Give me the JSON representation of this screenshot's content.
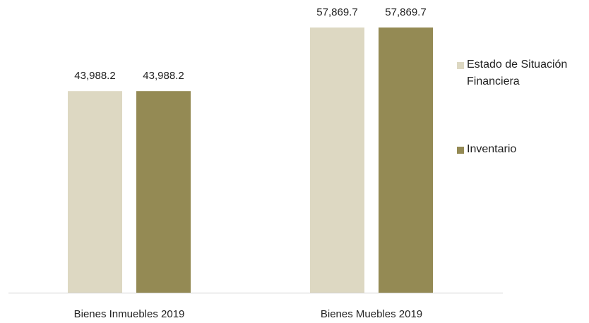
{
  "chart_data": {
    "type": "bar",
    "categories": [
      "Bienes Inmuebles 2019",
      "Bienes Muebles 2019"
    ],
    "series": [
      {
        "name": "Estado de Situación Financiera",
        "color": "#ddd8c2",
        "values": [
          43988.2,
          57869.7
        ],
        "value_labels": [
          "43,988.2",
          "57,869.7"
        ]
      },
      {
        "name": "Inventario",
        "color": "#948a54",
        "values": [
          43988.2,
          57869.7
        ],
        "value_labels": [
          "43,988.2",
          "57,869.7"
        ]
      }
    ],
    "legend": "right"
  }
}
